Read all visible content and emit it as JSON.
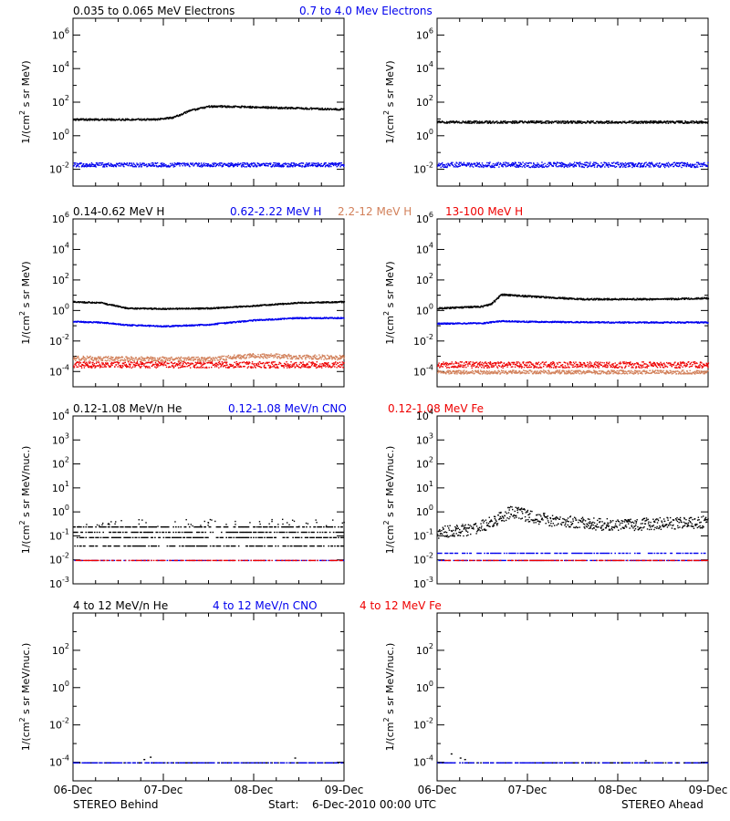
{
  "figure": {
    "left_label": "STEREO Behind",
    "right_label": "STEREO Ahead",
    "start_label": "Start:",
    "start_value": "6-Dec-2010 00:00 UTC",
    "x_ticks": [
      "06-Dec",
      "07-Dec",
      "08-Dec",
      "09-Dec"
    ]
  },
  "colors": {
    "black": "#000000",
    "blue": "#0000ee",
    "tan": "#d2805a",
    "red": "#ee0000"
  },
  "rows": [
    {
      "titles": [
        {
          "text": "0.035 to 0.065 MeV Electrons",
          "color": "black"
        },
        {
          "text": "0.7 to 4.0 Mev Electrons",
          "color": "blue"
        }
      ],
      "ylabel_base": "1/(cm",
      "ylabel_sup": "2",
      "ylabel_rest": " s sr MeV)",
      "ylim_exp": [
        -3,
        7
      ],
      "ytick_exps": [
        -2,
        0,
        2,
        4,
        6
      ]
    },
    {
      "titles": [
        {
          "text": "0.14-0.62 MeV H",
          "color": "black"
        },
        {
          "text": "0.62-2.22 MeV H",
          "color": "blue"
        },
        {
          "text": "2.2-12 MeV H",
          "color": "tan"
        },
        {
          "text": "13-100 MeV H",
          "color": "red"
        }
      ],
      "ylabel_base": "1/(cm",
      "ylabel_sup": "2",
      "ylabel_rest": " s sr MeV)",
      "ylim_exp": [
        -5,
        6
      ],
      "ytick_exps": [
        -4,
        -2,
        0,
        2,
        4,
        6
      ]
    },
    {
      "titles": [
        {
          "text": "0.12-1.08 MeV/n He",
          "color": "black"
        },
        {
          "text": "0.12-1.08 MeV/n CNO",
          "color": "blue"
        },
        {
          "text": "0.12-1.08 MeV Fe",
          "color": "red"
        }
      ],
      "ylabel_base": "1/(cm",
      "ylabel_sup": "2",
      "ylabel_rest": " s sr MeV/nuc.)",
      "ylim_exp": [
        -3,
        4
      ],
      "ytick_exps": [
        -3,
        -2,
        -1,
        0,
        1,
        2,
        3,
        4
      ]
    },
    {
      "titles": [
        {
          "text": "4 to 12 MeV/n He",
          "color": "black"
        },
        {
          "text": "4 to 12 MeV/n CNO",
          "color": "blue"
        },
        {
          "text": "4 to 12 MeV Fe",
          "color": "red"
        }
      ],
      "ylabel_base": "1/(cm",
      "ylabel_sup": "2",
      "ylabel_rest": " s sr MeV/nuc.)",
      "ylim_exp": [
        -5,
        4
      ],
      "ytick_exps": [
        -4,
        -2,
        0,
        2
      ]
    }
  ],
  "chart_data": [
    {
      "type": "scatter",
      "panel": "behind-electrons",
      "yscale": "log",
      "xlim_days": [
        0,
        3
      ],
      "ylim": [
        0.001,
        10000000
      ],
      "series": [
        {
          "name": "0.035 to 0.065 MeV Electrons",
          "color": "black",
          "x": [
            0,
            0.3,
            0.6,
            0.9,
            1.1,
            1.3,
            1.5,
            1.7,
            2.0,
            2.3,
            2.6,
            3.0
          ],
          "y": [
            10,
            10,
            10,
            10,
            13,
            35,
            60,
            60,
            55,
            50,
            45,
            40
          ],
          "scatter": 0.05
        },
        {
          "name": "0.7 to 4.0 Mev Electrons",
          "color": "blue",
          "x": [
            0,
            1,
            2,
            3
          ],
          "y": [
            0.02,
            0.02,
            0.02,
            0.02
          ],
          "scatter": 0.12
        }
      ]
    },
    {
      "type": "scatter",
      "panel": "ahead-electrons",
      "yscale": "log",
      "xlim_days": [
        0,
        3
      ],
      "ylim": [
        0.001,
        10000000
      ],
      "series": [
        {
          "name": "0.035 to 0.065 MeV Electrons",
          "color": "black",
          "x": [
            0,
            1,
            2,
            3
          ],
          "y": [
            7,
            7,
            7,
            7
          ],
          "scatter": 0.07
        },
        {
          "name": "0.7 to 4.0 Mev Electrons",
          "color": "blue",
          "x": [
            0,
            1,
            2,
            3
          ],
          "y": [
            0.02,
            0.02,
            0.02,
            0.02
          ],
          "scatter": 0.15
        }
      ]
    },
    {
      "type": "scatter",
      "panel": "behind-protons",
      "yscale": "log",
      "xlim_days": [
        0,
        3
      ],
      "ylim": [
        1e-05,
        1000000
      ],
      "series": [
        {
          "name": "0.14-0.62 MeV H",
          "color": "black",
          "x": [
            0,
            0.3,
            0.6,
            1.0,
            1.5,
            2.0,
            2.5,
            3.0
          ],
          "y": [
            4,
            3.5,
            1.5,
            1.4,
            1.5,
            2.2,
            3.5,
            4
          ],
          "scatter": 0.04
        },
        {
          "name": "0.62-2.22 MeV H",
          "color": "blue",
          "x": [
            0,
            0.3,
            0.6,
            1.0,
            1.5,
            2.0,
            2.5,
            3.0
          ],
          "y": [
            0.2,
            0.18,
            0.12,
            0.1,
            0.13,
            0.25,
            0.35,
            0.35
          ],
          "scatter": 0.04
        },
        {
          "name": "2.2-12 MeV H",
          "color": "tan",
          "x": [
            0,
            1,
            1.5,
            2,
            2.5,
            3
          ],
          "y": [
            0.0008,
            0.0007,
            0.0007,
            0.0012,
            0.001,
            0.0009
          ],
          "scatter": 0.15
        },
        {
          "name": "13-100 MeV H",
          "color": "red",
          "x": [
            0,
            1,
            2,
            3
          ],
          "y": [
            0.0003,
            0.0003,
            0.0003,
            0.0003
          ],
          "scatter": 0.2
        }
      ]
    },
    {
      "type": "scatter",
      "panel": "ahead-protons",
      "yscale": "log",
      "xlim_days": [
        0,
        3
      ],
      "ylim": [
        1e-05,
        1000000
      ],
      "series": [
        {
          "name": "0.14-0.62 MeV H",
          "color": "black",
          "x": [
            0,
            0.5,
            0.6,
            0.7,
            0.9,
            1.2,
            1.6,
            2.0,
            2.5,
            3.0
          ],
          "y": [
            1.5,
            2,
            3,
            12,
            10,
            8,
            6,
            6,
            6,
            7
          ],
          "scatter": 0.05
        },
        {
          "name": "0.62-2.22 MeV H",
          "color": "blue",
          "x": [
            0,
            0.5,
            0.7,
            1.0,
            2.0,
            3.0
          ],
          "y": [
            0.15,
            0.16,
            0.22,
            0.2,
            0.18,
            0.18
          ],
          "scatter": 0.04
        },
        {
          "name": "2.2-12 MeV H",
          "color": "tan",
          "x": [
            0,
            1,
            2,
            3
          ],
          "y": [
            0.0001,
            0.0001,
            0.0001,
            0.0001
          ],
          "scatter": 0.12
        },
        {
          "name": "13-100 MeV H",
          "color": "red",
          "x": [
            0,
            1,
            2,
            3
          ],
          "y": [
            0.0003,
            0.0003,
            0.0003,
            0.0003
          ],
          "scatter": 0.2
        }
      ]
    },
    {
      "type": "scatter",
      "panel": "behind-heavy-low",
      "yscale": "log",
      "xlim_days": [
        0,
        3
      ],
      "ylim": [
        0.0005,
        10000
      ],
      "series": [
        {
          "name": "0.12-1.08 MeV/n He",
          "color": "black",
          "levels": [
            0.04,
            0.09,
            0.15,
            0.25
          ],
          "spots": [
            0.3,
            0.4
          ]
        },
        {
          "name": "0.12-1.08 MeV/n CNO",
          "color": "blue",
          "levels": [
            0.01
          ]
        },
        {
          "name": "0.12-1.08 MeV Fe",
          "color": "red",
          "levels": [
            0.01
          ]
        }
      ]
    },
    {
      "type": "scatter",
      "panel": "ahead-heavy-low",
      "yscale": "log",
      "xlim_days": [
        0,
        3
      ],
      "ylim": [
        0.0005,
        10000
      ],
      "series": [
        {
          "name": "0.12-1.08 MeV/n He",
          "color": "black",
          "x": [
            0,
            0.4,
            0.6,
            0.8,
            0.9,
            1.2,
            1.6,
            2.0,
            2.5,
            3.0
          ],
          "y": [
            0.15,
            0.2,
            0.4,
            1,
            0.9,
            0.5,
            0.35,
            0.3,
            0.35,
            0.4
          ],
          "scatter": 0.25
        },
        {
          "name": "0.12-1.08 MeV/n CNO",
          "color": "blue",
          "levels": [
            0.01,
            0.02
          ]
        },
        {
          "name": "0.12-1.08 MeV Fe",
          "color": "red",
          "levels": [
            0.01
          ]
        }
      ]
    },
    {
      "type": "scatter",
      "panel": "behind-heavy-high",
      "yscale": "log",
      "xlim_days": [
        0,
        3
      ],
      "ylim": [
        1e-05,
        10000
      ],
      "series": [
        {
          "name": "4 to 12 MeV/n He",
          "color": "black",
          "levels": [
            0.0001
          ],
          "spots_x": [
            0.78,
            0.85,
            2.45
          ],
          "spots_y": [
            0.00015,
            0.0002,
            0.00018
          ]
        },
        {
          "name": "4 to 12 MeV/n CNO",
          "color": "blue",
          "levels": [
            0.0001
          ]
        },
        {
          "name": "4 to 12 MeV Fe",
          "color": "red",
          "levels": []
        }
      ]
    },
    {
      "type": "scatter",
      "panel": "ahead-heavy-high",
      "yscale": "log",
      "xlim_days": [
        0,
        3
      ],
      "ylim": [
        1e-05,
        10000
      ],
      "series": [
        {
          "name": "4 to 12 MeV/n He",
          "color": "black",
          "levels": [
            0.0001
          ],
          "spots_x": [
            0.15,
            0.25,
            0.3,
            2.3
          ],
          "spots_y": [
            0.0003,
            0.00018,
            0.00015,
            0.00013
          ]
        },
        {
          "name": "4 to 12 MeV/n CNO",
          "color": "blue",
          "levels": [
            0.0001
          ]
        },
        {
          "name": "4 to 12 MeV Fe",
          "color": "red",
          "levels": []
        }
      ]
    }
  ]
}
